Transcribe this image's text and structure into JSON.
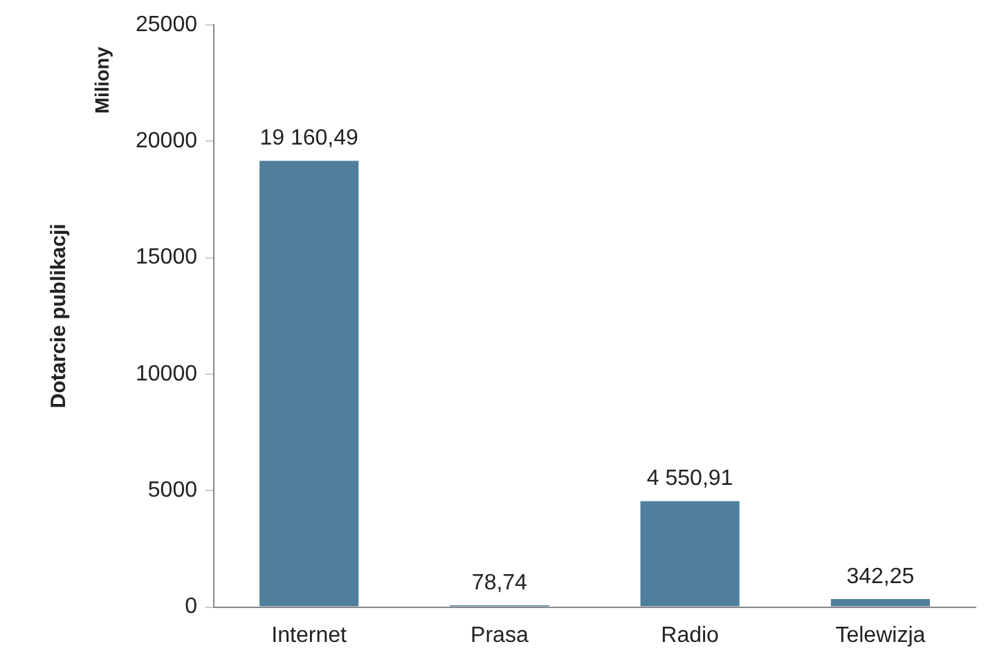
{
  "chart_data": {
    "type": "bar",
    "ylabel": "Dotarcie publikacji",
    "annotations": [
      "Miliony"
    ],
    "categories": [
      "Internet",
      "Prasa",
      "Radio",
      "Telewizja"
    ],
    "values": [
      19160.49,
      78.74,
      4550.91,
      342.25
    ],
    "value_labels": [
      "19 160,49",
      "78,74",
      "4 550,91",
      "342,25"
    ],
    "color": "#4f7f9c",
    "ylim": [
      0,
      25000
    ],
    "yticks": [
      0,
      5000,
      10000,
      15000,
      20000,
      25000
    ],
    "grid": false,
    "legend": false
  }
}
